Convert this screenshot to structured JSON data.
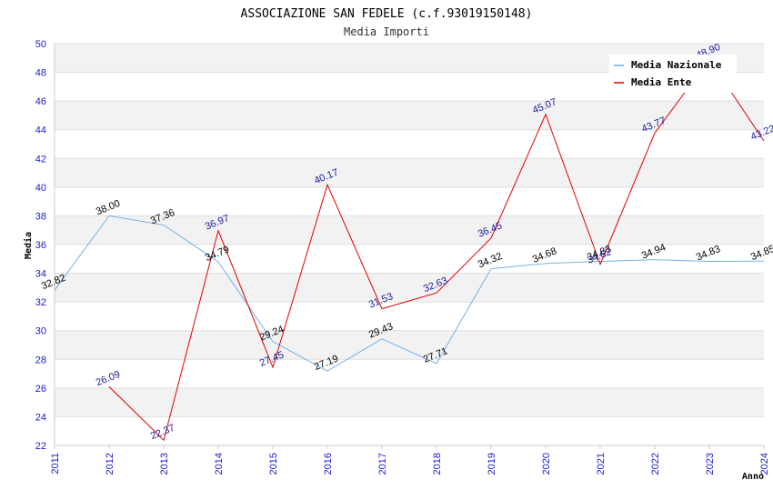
{
  "chart_data": {
    "type": "line",
    "title": "ASSOCIAZIONE SAN FEDELE (c.f.93019150148)",
    "subtitle": "Media Importi",
    "xlabel": "Anno",
    "ylabel": "Media",
    "ylim": [
      22,
      50
    ],
    "yticks": [
      "22",
      "24",
      "26",
      "28",
      "30",
      "32",
      "34",
      "36",
      "38",
      "40",
      "42",
      "44",
      "46",
      "48",
      "50"
    ],
    "categories": [
      "2011",
      "2012",
      "2013",
      "2014",
      "2015",
      "2016",
      "2017",
      "2018",
      "2019",
      "2020",
      "2021",
      "2022",
      "2023",
      "2024"
    ],
    "grid": true,
    "legend": "top-right",
    "series": [
      {
        "name": "Media Nazionale",
        "color": "#6aaae6",
        "label_color": "#000000",
        "values": [
          32.82,
          38.0,
          37.36,
          34.79,
          29.24,
          27.19,
          29.43,
          27.71,
          34.32,
          34.68,
          34.83,
          34.94,
          34.83,
          34.85
        ],
        "labels": [
          "32.82",
          "38.00",
          "37.36",
          "34.79",
          "29.24",
          "27.19",
          "29.43",
          "27.71",
          "34.32",
          "34.68",
          "34.83",
          "34.94",
          "34.83",
          "34.85"
        ]
      },
      {
        "name": "Media Ente",
        "color": "#e00000",
        "label_color": "#1a1a9a",
        "values": [
          null,
          26.09,
          22.37,
          36.97,
          27.45,
          40.17,
          31.53,
          32.63,
          36.45,
          45.07,
          34.62,
          43.77,
          48.9,
          43.22
        ],
        "labels": [
          "",
          "26.09",
          "22.37",
          "36.97",
          "27.45",
          "40.17",
          "31.53",
          "32.63",
          "36.45",
          "45.07",
          "34.62",
          "43.77",
          "48.90",
          "43.22"
        ]
      }
    ]
  }
}
